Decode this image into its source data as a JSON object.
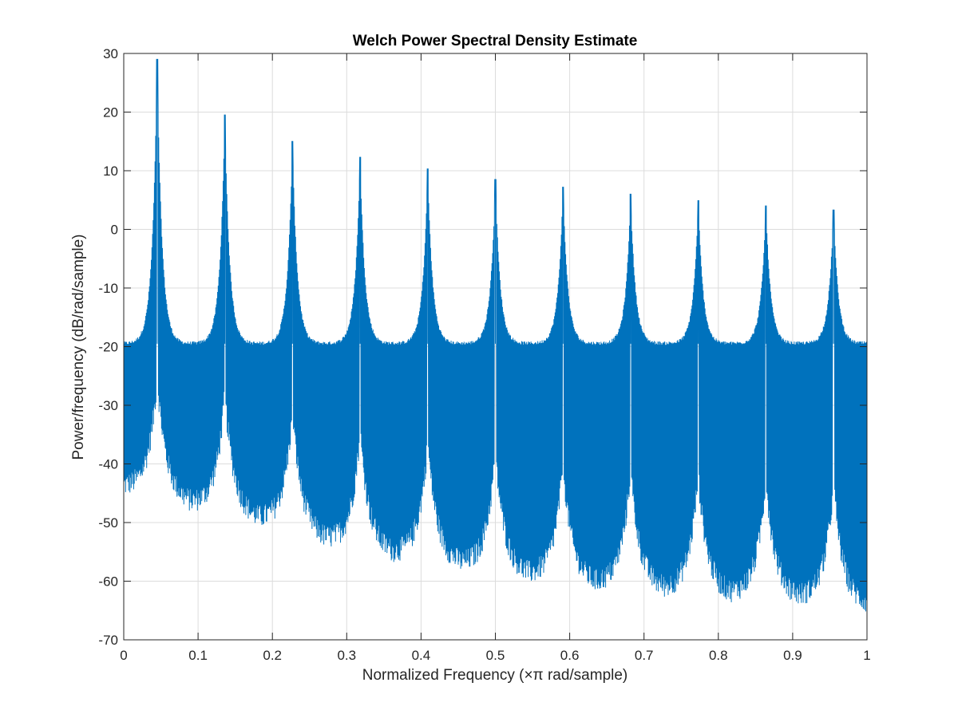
{
  "chart_data": {
    "type": "line",
    "title": "Welch Power Spectral Density Estimate",
    "xlabel": "Normalized Frequency  (×π rad/sample)",
    "ylabel": "Power/frequency (dB/rad/sample)",
    "xlim": [
      0,
      1
    ],
    "ylim": [
      -70,
      30
    ],
    "grid": true,
    "x_ticks": [
      0,
      0.1,
      0.2,
      0.3,
      0.4,
      0.5,
      0.6,
      0.7,
      0.8,
      0.9,
      1
    ],
    "x_tick_labels": [
      "0",
      "0.1",
      "0.2",
      "0.3",
      "0.4",
      "0.5",
      "0.6",
      "0.7",
      "0.8",
      "0.9",
      "1"
    ],
    "y_ticks": [
      30,
      20,
      10,
      0,
      -10,
      -20,
      -30,
      -40,
      -50,
      -60,
      -70
    ],
    "y_tick_labels": [
      "30",
      "20",
      "10",
      "0",
      "-10",
      "-20",
      "-30",
      "-40",
      "-50",
      "-60",
      "-70"
    ],
    "line_color": "#0072BD",
    "series": [
      {
        "peaks": [
          {
            "x": 0.045,
            "y": 29
          },
          {
            "x": 0.136,
            "y": 19.5
          },
          {
            "x": 0.227,
            "y": 15
          },
          {
            "x": 0.318,
            "y": 12.3
          },
          {
            "x": 0.409,
            "y": 10.3
          },
          {
            "x": 0.5,
            "y": 8.5
          },
          {
            "x": 0.591,
            "y": 7.2
          },
          {
            "x": 0.682,
            "y": 6
          },
          {
            "x": 0.773,
            "y": 4.9
          },
          {
            "x": 0.864,
            "y": 4
          },
          {
            "x": 0.955,
            "y": 3.3
          }
        ],
        "comb_envelope_between_peaks_db": -19.5,
        "noise_floor_trend_db": [
          {
            "x": 0,
            "y": -44
          },
          {
            "x": 0.1,
            "y": -47
          },
          {
            "x": 0.2,
            "y": -50
          },
          {
            "x": 0.3,
            "y": -54
          },
          {
            "x": 0.4,
            "y": -56
          },
          {
            "x": 0.5,
            "y": -58
          },
          {
            "x": 0.6,
            "y": -60
          },
          {
            "x": 0.7,
            "y": -61
          },
          {
            "x": 0.8,
            "y": -62
          },
          {
            "x": 0.9,
            "y": -62.5
          },
          {
            "x": 1,
            "y": -64
          }
        ]
      }
    ]
  }
}
